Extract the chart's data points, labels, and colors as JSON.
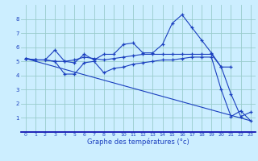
{
  "xlabel": "Graphe des températures (°c)",
  "bg_color": "#cceeff",
  "grid_color": "#99cccc",
  "line_color": "#1a3fbf",
  "spine_color": "#0000aa",
  "xlim": [
    -0.5,
    23.5
  ],
  "ylim": [
    0,
    9
  ],
  "xticks": [
    0,
    1,
    2,
    3,
    4,
    5,
    6,
    7,
    8,
    9,
    10,
    11,
    12,
    13,
    14,
    15,
    16,
    17,
    18,
    19,
    20,
    21,
    22,
    23
  ],
  "yticks": [
    1,
    2,
    3,
    4,
    5,
    6,
    7,
    8
  ],
  "lines": [
    {
      "x": [
        0,
        1,
        2,
        3,
        4,
        5,
        6,
        7,
        8,
        9,
        10,
        11,
        12,
        13,
        14,
        15,
        16,
        17,
        18,
        19,
        20,
        21,
        22,
        23
      ],
      "y": [
        5.2,
        5.1,
        5.1,
        5.8,
        5.0,
        4.9,
        5.5,
        5.1,
        5.5,
        5.5,
        6.2,
        6.3,
        5.6,
        5.6,
        6.2,
        7.7,
        8.3,
        7.4,
        6.5,
        5.6,
        4.6,
        2.7,
        1.1,
        1.4
      ],
      "marker": true
    },
    {
      "x": [
        0,
        1,
        2,
        3,
        4,
        5,
        6,
        7,
        8,
        9,
        10,
        11,
        12,
        13,
        14,
        15,
        16,
        17,
        18,
        19,
        20,
        21
      ],
      "y": [
        5.2,
        5.1,
        5.1,
        5.0,
        5.0,
        5.1,
        5.3,
        5.2,
        5.1,
        5.2,
        5.3,
        5.4,
        5.5,
        5.5,
        5.5,
        5.5,
        5.5,
        5.5,
        5.5,
        5.5,
        4.6,
        4.6
      ],
      "marker": true
    },
    {
      "x": [
        0,
        1,
        2,
        3,
        4,
        5,
        6,
        7,
        8,
        9,
        10,
        11,
        12,
        13,
        14,
        15,
        16,
        17,
        18,
        19,
        20,
        21,
        22,
        23
      ],
      "y": [
        5.2,
        5.1,
        5.1,
        5.0,
        4.1,
        4.1,
        4.9,
        5.0,
        4.2,
        4.5,
        4.6,
        4.8,
        4.9,
        5.0,
        5.1,
        5.1,
        5.2,
        5.3,
        5.3,
        5.3,
        3.0,
        1.1,
        1.5,
        0.8
      ],
      "marker": true
    },
    {
      "x": [
        0,
        23
      ],
      "y": [
        5.2,
        0.8
      ],
      "marker": false
    }
  ]
}
